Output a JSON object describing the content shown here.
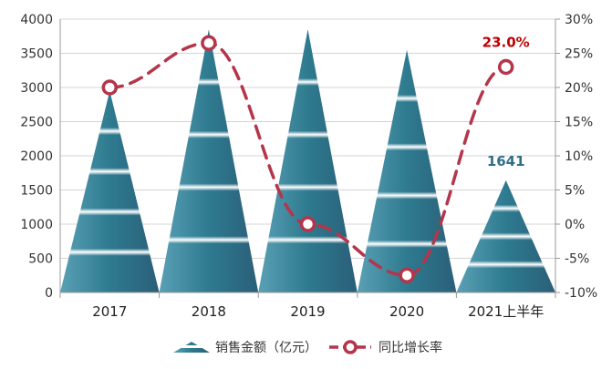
{
  "chart_data": {
    "type": "bar",
    "categories": [
      "2017",
      "2018",
      "2019",
      "2020",
      "2021上半年"
    ],
    "series": [
      {
        "name": "销售金额（亿元）",
        "axis": "left",
        "style": "pyramid",
        "values": [
          2950,
          3850,
          3850,
          3550,
          1641
        ],
        "data_labels": [
          null,
          null,
          null,
          null,
          "1641"
        ],
        "color": "#2f6f86"
      },
      {
        "name": "同比增长率",
        "axis": "right",
        "style": "dashed-line-with-ring-markers",
        "values": [
          20.0,
          26.5,
          0.0,
          -7.5,
          23.0
        ],
        "data_labels": [
          null,
          null,
          null,
          null,
          "23.0%"
        ],
        "color": "#b5354a"
      }
    ],
    "y_left": {
      "ticks": [
        "0",
        "500",
        "1000",
        "1500",
        "2000",
        "2500",
        "3000",
        "3500",
        "4000"
      ],
      "ylim": [
        0,
        4000
      ]
    },
    "y_right": {
      "ticks": [
        "-10%",
        "-5%",
        "0%",
        "5%",
        "10%",
        "15%",
        "20%",
        "25%",
        "30%"
      ],
      "ylim": [
        -10,
        30
      ]
    },
    "grid": true,
    "legend": {
      "position": "bottom",
      "items": [
        "销售金额（亿元）",
        "同比增长率"
      ]
    }
  }
}
